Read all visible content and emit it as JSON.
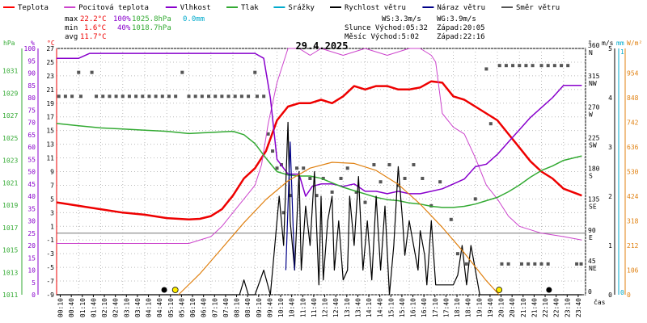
{
  "chart_data": {
    "type": "line",
    "title": "29.4.2025",
    "legend": [
      {
        "label": "Teplota",
        "color": "#ff0000"
      },
      {
        "label": "Pocitová teplota",
        "color": "#cc44cc"
      },
      {
        "label": "Vlhkost",
        "color": "#8800cc"
      },
      {
        "label": "Tlak",
        "color": "#33aa33"
      },
      {
        "label": "Srážky",
        "color": "#00aacc"
      },
      {
        "label": "Rychlost větru",
        "color": "#000000"
      },
      {
        "label": "Náraz větru",
        "color": "#000088"
      },
      {
        "label": "Směr větru",
        "color": "#555555"
      }
    ],
    "stats": {
      "max_label": "max",
      "min_label": "min",
      "avg_label": "avg",
      "max_temp": "22.2°C",
      "max_hum": "100%",
      "max_press": "1025.8hPa",
      "max_rain": "0.0mm",
      "min_temp": "1.6°C",
      "min_hum": "40%",
      "min_press": "1018.7hPa",
      "avg_temp": "11.7°C",
      "ws": "WS:3.3m/s",
      "wg": "WG:3.9m/s",
      "sun_rise": "Slunce Východ:05:32",
      "sun_set": "Západ:20:05",
      "moon_rise": "Měsíc  Východ:5:02",
      "moon_set": "Západ:22:16"
    },
    "axis_units": {
      "press": "hPa",
      "hum": "%",
      "temp": "°C",
      "dir": "°",
      "wind": "m/s",
      "rain": "mm",
      "solar": "W/m²",
      "time": "čas"
    },
    "x_ticks": [
      "00:10",
      "00:40",
      "01:10",
      "01:40",
      "02:10",
      "02:40",
      "03:10",
      "03:40",
      "04:10",
      "04:40",
      "05:10",
      "05:40",
      "06:10",
      "06:40",
      "07:10",
      "07:40",
      "08:10",
      "08:40",
      "09:10",
      "09:40",
      "10:10",
      "10:40",
      "11:10",
      "11:40",
      "12:10",
      "12:40",
      "13:10",
      "13:40",
      "14:10",
      "14:40",
      "15:10",
      "15:40",
      "16:10",
      "16:40",
      "17:10",
      "17:40",
      "18:10",
      "18:40",
      "19:10",
      "19:40",
      "20:10",
      "20:40",
      "21:10",
      "21:40",
      "22:10",
      "22:40",
      "23:10",
      "23:40"
    ],
    "temp_axis": {
      "ticks": [
        "-9",
        "-7",
        "-5",
        "-3",
        "-1",
        "1",
        "3",
        "5",
        "7",
        "9",
        "11",
        "13",
        "15",
        "17",
        "19",
        "21",
        "23",
        "25",
        "27"
      ],
      "ylim": [
        -9,
        27
      ]
    },
    "hum_axis": {
      "ticks": [
        "0",
        "5",
        "10",
        "15",
        "20",
        "25",
        "30",
        "35",
        "40",
        "45",
        "50",
        "55",
        "60",
        "65",
        "70",
        "75",
        "80",
        "85",
        "90",
        "95",
        "100"
      ]
    },
    "press_axis": {
      "ticks": [
        "1011",
        "1013",
        "1015",
        "1017",
        "1019",
        "1021",
        "1023",
        "1025",
        "1027",
        "1029",
        "1031"
      ],
      "ylim": [
        1011,
        1033
      ]
    },
    "dir_axis": {
      "ticks": [
        [
          "360",
          "N"
        ],
        [
          "315",
          "NW"
        ],
        [
          "270",
          "W"
        ],
        [
          "225",
          "SW"
        ],
        [
          "180",
          "S"
        ],
        [
          "135",
          "SE"
        ],
        [
          "90",
          "E"
        ],
        [
          "45",
          "NE"
        ],
        [
          "0",
          ""
        ]
      ],
      "ylim": [
        0,
        360
      ]
    },
    "wind_axis": {
      "ticks": [
        "0",
        "1",
        "2",
        "3",
        "4",
        "5"
      ]
    },
    "rain_axis": {
      "ticks": [
        "0",
        "1"
      ]
    },
    "solar_axis": {
      "ticks": [
        "0",
        "106",
        "212",
        "318",
        "424",
        "530",
        "636",
        "742",
        "848",
        "954"
      ]
    },
    "series": [
      {
        "key": "temp",
        "color": "#ee0000",
        "x": [
          0,
          1,
          2,
          3,
          4,
          5,
          6,
          6.5,
          7,
          7.5,
          8,
          8.5,
          9,
          9.5,
          10,
          10.5,
          11,
          11.5,
          12,
          12.5,
          13,
          13.5,
          14,
          14.5,
          15,
          15.5,
          16,
          16.5,
          17,
          17.5,
          18,
          18.5,
          19,
          19.5,
          20,
          20.5,
          21,
          21.5,
          22,
          22.5,
          23,
          23.83
        ],
        "y": [
          4.5,
          4,
          3.5,
          3,
          2.7,
          2.2,
          2,
          2.1,
          2.5,
          3.5,
          5.5,
          8,
          9.5,
          12,
          16.5,
          18.5,
          19,
          19,
          19.5,
          19,
          20,
          21.5,
          21,
          21.5,
          21.5,
          21,
          21,
          21.3,
          22.2,
          22,
          20,
          19.5,
          18.5,
          17.5,
          16.5,
          14.5,
          12.5,
          10.5,
          9,
          8,
          6.5,
          5.5
        ]
      },
      {
        "key": "feel",
        "color": "#cc44cc",
        "x": [
          0,
          1,
          2,
          3,
          4,
          5,
          6,
          7,
          7.5,
          8,
          8.5,
          9,
          9.3,
          9.6,
          10,
          10.5,
          11,
          11.5,
          12,
          13,
          14,
          15,
          16,
          16.5,
          17,
          17.2,
          17.5,
          18,
          18.5,
          19,
          19.5,
          20,
          20.5,
          21,
          22,
          23,
          23.83
        ],
        "y": [
          -1.5,
          -1.5,
          -1.5,
          -1.5,
          -1.5,
          -1.5,
          -1.5,
          -0.5,
          1,
          3,
          5,
          7,
          10,
          16,
          22,
          27,
          27,
          26,
          27,
          26,
          27,
          26,
          27,
          27,
          26,
          25,
          17.5,
          15.5,
          14.5,
          11,
          7,
          5,
          2.5,
          1,
          0,
          -0.5,
          -1
        ]
      },
      {
        "key": "hum",
        "color": "#8800cc",
        "x": [
          0,
          1,
          1.5,
          2,
          3,
          4,
          5,
          6,
          7,
          8,
          9,
          9.4,
          9.7,
          10,
          10.5,
          11,
          11.3,
          11.6,
          12,
          12.5,
          13,
          13.5,
          14,
          14.5,
          15,
          15.5,
          16,
          16.5,
          17,
          17.5,
          18,
          18.5,
          19,
          19.5,
          20,
          20.5,
          21,
          21.5,
          22,
          22.5,
          23,
          23.83
        ],
        "y": [
          96,
          96,
          98,
          98,
          98,
          98,
          98,
          98,
          98,
          98,
          98,
          96,
          80,
          55,
          49,
          49,
          40,
          44,
          45,
          45,
          44,
          45,
          42,
          42,
          41,
          42,
          41,
          41,
          42,
          43,
          45,
          47,
          52,
          53,
          57,
          62,
          67,
          72,
          76,
          80,
          85,
          85
        ]
      },
      {
        "key": "press",
        "color": "#33aa33",
        "x": [
          0,
          1,
          2,
          3,
          4,
          5,
          6,
          7,
          8,
          8.5,
          9,
          9.5,
          10,
          10.5,
          11,
          11.5,
          12,
          12.5,
          13,
          13.5,
          14,
          14.5,
          15,
          15.5,
          16,
          16.5,
          17,
          17.5,
          18,
          18.5,
          19,
          19.5,
          20,
          20.5,
          21,
          21.5,
          22,
          22.5,
          23,
          23.83
        ],
        "y": [
          1026.3,
          1026.1,
          1025.9,
          1025.8,
          1025.7,
          1025.6,
          1025.4,
          1025.5,
          1025.6,
          1025.3,
          1024.5,
          1023.2,
          1022.0,
          1021.7,
          1021.6,
          1021.6,
          1021.4,
          1021.0,
          1020.6,
          1020.3,
          1020.0,
          1019.7,
          1019.5,
          1019.4,
          1019.2,
          1019.1,
          1018.9,
          1018.8,
          1018.8,
          1018.9,
          1019.1,
          1019.4,
          1019.7,
          1020.2,
          1020.8,
          1021.5,
          1022.1,
          1022.5,
          1023.0,
          1023.4
        ]
      },
      {
        "key": "wind",
        "color": "#000000",
        "x": [
          0,
          8.3,
          8.5,
          8.7,
          9,
          9.4,
          9.7,
          9.9,
          10.1,
          10.3,
          10.5,
          10.6,
          10.8,
          11,
          11.1,
          11.3,
          11.5,
          11.7,
          11.9,
          12,
          12.1,
          12.3,
          12.5,
          12.6,
          12.8,
          13,
          13.2,
          13.3,
          13.5,
          13.7,
          13.9,
          14.1,
          14.3,
          14.5,
          14.7,
          14.9,
          15.1,
          15.3,
          15.5,
          15.7,
          15.8,
          16,
          16.2,
          16.4,
          16.5,
          16.7,
          16.8,
          17,
          17.2,
          17.4,
          17.6,
          17.8,
          18,
          18.2,
          18.4,
          18.6,
          18.8,
          19,
          19.2,
          19.4,
          23.83
        ],
        "y": [
          0,
          0,
          0.3,
          0,
          0,
          0.5,
          0,
          1,
          2,
          1,
          3.5,
          1.5,
          0.5,
          2.5,
          0.5,
          1.8,
          1,
          2.5,
          0.2,
          2,
          0.3,
          1.5,
          2,
          0.5,
          1.5,
          0.3,
          0.5,
          2,
          1,
          2.4,
          0.5,
          1.5,
          0.3,
          2,
          0.5,
          1.8,
          0,
          1,
          2.6,
          1.5,
          0.8,
          1.5,
          1,
          0.5,
          1.3,
          0.8,
          0.2,
          1.5,
          0.2,
          0.2,
          0.2,
          0.2,
          0.2,
          0.4,
          1,
          0.2,
          1,
          0.5,
          0,
          0,
          0
        ]
      },
      {
        "key": "gust",
        "color": "#000088",
        "x": [
          10.4,
          10.6,
          10.8
        ],
        "y": [
          0.5,
          3.1,
          0.5
        ]
      },
      {
        "key": "solar",
        "color": "#e08010",
        "x": [
          5.53,
          6.5,
          7.5,
          8.5,
          9.5,
          10.5,
          11.5,
          12.5,
          13.5,
          14.5,
          15.5,
          16.5,
          17.5,
          18.5,
          19.5,
          20.08
        ],
        "y": [
          0,
          90,
          200,
          310,
          410,
          490,
          545,
          570,
          565,
          535,
          475,
          390,
          290,
          180,
          60,
          0
        ]
      }
    ],
    "wind_dir": [
      [
        0.1,
        290
      ],
      [
        0.4,
        290
      ],
      [
        0.7,
        290
      ],
      [
        1,
        325
      ],
      [
        1.1,
        290
      ],
      [
        1.6,
        325
      ],
      [
        1.8,
        290
      ],
      [
        2.1,
        290
      ],
      [
        2.4,
        290
      ],
      [
        2.7,
        290
      ],
      [
        3,
        290
      ],
      [
        3.3,
        290
      ],
      [
        3.6,
        290
      ],
      [
        3.9,
        290
      ],
      [
        4.2,
        290
      ],
      [
        4.5,
        290
      ],
      [
        4.8,
        290
      ],
      [
        5.1,
        290
      ],
      [
        5.4,
        290
      ],
      [
        5.7,
        325
      ],
      [
        6,
        290
      ],
      [
        6.3,
        290
      ],
      [
        6.6,
        290
      ],
      [
        6.9,
        290
      ],
      [
        7.2,
        290
      ],
      [
        7.5,
        290
      ],
      [
        7.8,
        290
      ],
      [
        8.1,
        290
      ],
      [
        8.4,
        290
      ],
      [
        8.7,
        290
      ],
      [
        9,
        325
      ],
      [
        9.1,
        290
      ],
      [
        9.4,
        290
      ],
      [
        9.6,
        235
      ],
      [
        9.8,
        210
      ],
      [
        10,
        185
      ],
      [
        10.2,
        190
      ],
      [
        10.3,
        120
      ],
      [
        10.6,
        145
      ],
      [
        10.9,
        185
      ],
      [
        11.2,
        185
      ],
      [
        11.5,
        170
      ],
      [
        11.8,
        145
      ],
      [
        12.1,
        170
      ],
      [
        12.5,
        150
      ],
      [
        12.9,
        170
      ],
      [
        13.2,
        185
      ],
      [
        13.6,
        150
      ],
      [
        14,
        135
      ],
      [
        14.4,
        190
      ],
      [
        14.7,
        165
      ],
      [
        15.1,
        190
      ],
      [
        15.5,
        160
      ],
      [
        15.8,
        170
      ],
      [
        16.2,
        190
      ],
      [
        16.6,
        170
      ],
      [
        17,
        130
      ],
      [
        17.4,
        165
      ],
      [
        17.9,
        110
      ],
      [
        18.2,
        60
      ],
      [
        18.6,
        45
      ],
      [
        19,
        140
      ],
      [
        19.5,
        330
      ],
      [
        19.7,
        250
      ],
      [
        20.1,
        335
      ],
      [
        20.4,
        335
      ],
      [
        20.7,
        335
      ],
      [
        21,
        335
      ],
      [
        21.3,
        335
      ],
      [
        21.6,
        335
      ],
      [
        22,
        335
      ],
      [
        22.3,
        335
      ],
      [
        22.6,
        335
      ],
      [
        22.9,
        335
      ],
      [
        23.2,
        335
      ],
      [
        21.1,
        45
      ],
      [
        21.4,
        45
      ],
      [
        21.7,
        45
      ],
      [
        22,
        45
      ],
      [
        22.3,
        45
      ],
      [
        23.6,
        45
      ],
      [
        23.8,
        45
      ],
      [
        20.5,
        45
      ],
      [
        20.2,
        45
      ]
    ]
  },
  "markers": {
    "moon_rise_time": 5.03,
    "sun_rise_time": 5.53,
    "sun_set_time": 20.08,
    "moon_set_time": 22.27
  }
}
